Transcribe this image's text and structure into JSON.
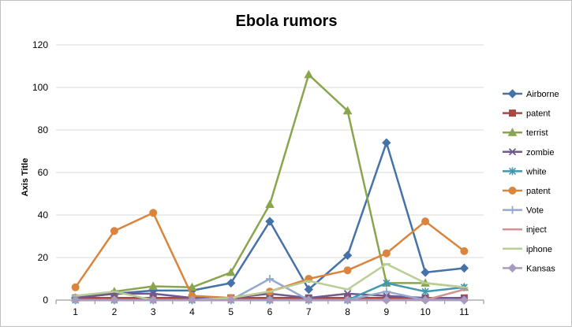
{
  "chart_data": {
    "type": "line",
    "title": "Ebola rumors",
    "xlabel": "",
    "ylabel": "Axis Title",
    "x": [
      "1",
      "2",
      "3",
      "4",
      "5",
      "6",
      "7",
      "8",
      "9",
      "10",
      "11"
    ],
    "ylim": [
      0,
      120
    ],
    "yticks": [
      "0",
      "20",
      "40",
      "60",
      "80",
      "100",
      "120"
    ],
    "grid": true,
    "legend": "right",
    "series": [
      {
        "name": "Airborne",
        "color": "#4572A7",
        "marker": "diamond",
        "values": [
          1,
          3,
          4.5,
          4.5,
          8,
          37,
          5,
          21,
          74,
          13,
          15
        ]
      },
      {
        "name": "patent",
        "color": "#AA4643",
        "marker": "square",
        "values": [
          1,
          1,
          1,
          1,
          1,
          1,
          1,
          1,
          1,
          1,
          1
        ]
      },
      {
        "name": "terrist",
        "color": "#89A54E",
        "marker": "triangle",
        "values": [
          1,
          4,
          6.5,
          6,
          13,
          45,
          106,
          89,
          8,
          8,
          6
        ]
      },
      {
        "name": "zombie",
        "color": "#71588F",
        "marker": "x",
        "values": [
          1,
          3,
          3,
          1,
          1,
          3,
          1,
          3,
          2,
          1,
          1
        ]
      },
      {
        "name": "white",
        "color": "#4198AF",
        "marker": "star",
        "values": [
          0,
          0,
          0,
          0,
          0,
          0,
          0,
          0,
          8,
          4,
          6
        ]
      },
      {
        "name": "patent",
        "color": "#DB843D",
        "marker": "circle",
        "values": [
          6,
          32.5,
          41,
          2,
          1,
          4,
          10,
          14,
          22,
          37,
          23
        ]
      },
      {
        "name": "Vote",
        "color": "#93A9CF",
        "marker": "plus",
        "values": [
          0,
          0,
          0,
          0,
          0,
          10,
          0,
          0,
          4,
          0,
          0
        ]
      },
      {
        "name": "inject",
        "color": "#D19392",
        "marker": "dash",
        "values": [
          0,
          0,
          0,
          0,
          0,
          0,
          0,
          0,
          0,
          0,
          5
        ]
      },
      {
        "name": "iphone",
        "color": "#B9CD96",
        "marker": "dash",
        "values": [
          2,
          4,
          0,
          0,
          1,
          4,
          9,
          5,
          17,
          8,
          6
        ]
      },
      {
        "name": "Kansas",
        "color": "#A99BBD",
        "marker": "diamond",
        "values": [
          0,
          0,
          0,
          0,
          0,
          0,
          0,
          0,
          0,
          0,
          0
        ]
      }
    ]
  }
}
